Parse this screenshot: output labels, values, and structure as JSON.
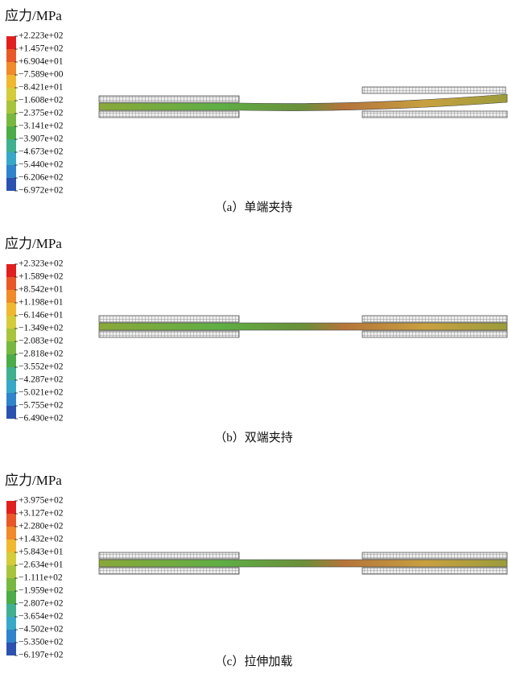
{
  "panels": [
    {
      "legend_title": "应力/MPa",
      "legend_labels": [
        "+2.223e+02",
        "+1.457e+02",
        "+6.904e+01",
        "−7.589e+00",
        "−8.421e+01",
        "−1.608e+02",
        "−2.375e+02",
        "−3.141e+02",
        "−3.907e+02",
        "−4.673e+02",
        "−5.440e+02",
        "−6.206e+02",
        "−6.972e+02"
      ],
      "caption": "（a）单端夹持"
    },
    {
      "legend_title": "应力/MPa",
      "legend_labels": [
        "+2.323e+02",
        "+1.589e+02",
        "+8.542e+01",
        "+1.198e+01",
        "−6.146e+01",
        "−1.349e+02",
        "−2.083e+02",
        "−2.818e+02",
        "−3.552e+02",
        "−4.287e+02",
        "−5.021e+02",
        "−5.755e+02",
        "−6.490e+02"
      ],
      "caption": "（b）双端夹持"
    },
    {
      "legend_title": "应力/MPa",
      "legend_labels": [
        "+3.975e+02",
        "+3.127e+02",
        "+2.280e+02",
        "+1.432e+02",
        "+5.843e+01",
        "−2.634e+01",
        "−1.111e+02",
        "−1.959e+02",
        "−2.807e+02",
        "−3.654e+02",
        "−4.502e+02",
        "−5.350e+02",
        "−6.197e+02"
      ],
      "caption": "（c）拉伸加载"
    }
  ]
}
